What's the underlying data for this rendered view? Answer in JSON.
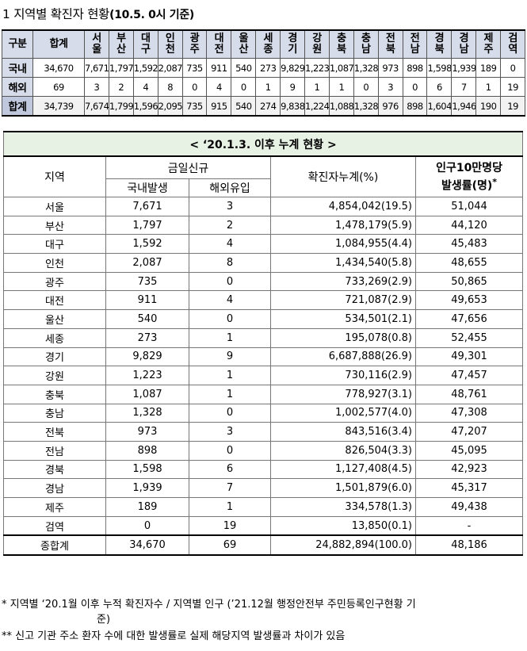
{
  "title": {
    "prefix": "1 지역별 확진자 현황",
    "bold": "(10.5. 0시 기준)"
  },
  "summary": {
    "corner": "구분",
    "total_header": "합계",
    "regions": [
      "서울",
      "부산",
      "대구",
      "인천",
      "광주",
      "대전",
      "울산",
      "세종",
      "경기",
      "강원",
      "충북",
      "충남",
      "전북",
      "전남",
      "경북",
      "경남",
      "제주",
      "검역"
    ],
    "region_lines": [
      [
        "서",
        "울"
      ],
      [
        "부",
        "산"
      ],
      [
        "대",
        "구"
      ],
      [
        "인",
        "천"
      ],
      [
        "광",
        "주"
      ],
      [
        "대",
        "전"
      ],
      [
        "울",
        "산"
      ],
      [
        "세",
        "종"
      ],
      [
        "경",
        "기"
      ],
      [
        "강",
        "원"
      ],
      [
        "충",
        "북"
      ],
      [
        "충",
        "남"
      ],
      [
        "전",
        "북"
      ],
      [
        "전",
        "남"
      ],
      [
        "경",
        "북"
      ],
      [
        "경",
        "남"
      ],
      [
        "제",
        "주"
      ],
      [
        "검",
        "역"
      ]
    ],
    "rows": [
      {
        "label": "국내",
        "total": "34,670",
        "values": [
          "7,671",
          "1,797",
          "1,592",
          "2,087",
          "735",
          "911",
          "540",
          "273",
          "9,829",
          "1,223",
          "1,087",
          "1,328",
          "973",
          "898",
          "1,598",
          "1,939",
          "189",
          "0"
        ]
      },
      {
        "label": "해외",
        "total": "69",
        "values": [
          "3",
          "2",
          "4",
          "8",
          "0",
          "4",
          "0",
          "1",
          "9",
          "1",
          "1",
          "0",
          "3",
          "0",
          "6",
          "7",
          "1",
          "19"
        ]
      },
      {
        "label": "합계",
        "total": "34,739",
        "values": [
          "7,674",
          "1,799",
          "1,596",
          "2,095",
          "735",
          "915",
          "540",
          "274",
          "9,838",
          "1,224",
          "1,088",
          "1,328",
          "976",
          "898",
          "1,604",
          "1,946",
          "190",
          "19"
        ]
      }
    ]
  },
  "cumulative": {
    "caption": "< ‘20.1.3. 이후 누계 현황 >",
    "h_region": "지역",
    "h_today": "금일신규",
    "h_domestic": "국내발생",
    "h_overseas": "해외유입",
    "h_cumulative": "확진자누계(%)",
    "h_rate_line1": "인구10만명당",
    "h_rate_line2": "발생률(명)",
    "h_rate_mark": "*",
    "rows": [
      {
        "region": "서울",
        "domestic": "7,671",
        "overseas": "3",
        "cumulative": "4,854,042(19.5)",
        "rate": "51,044"
      },
      {
        "region": "부산",
        "domestic": "1,797",
        "overseas": "2",
        "cumulative": "1,478,179(5.9)",
        "rate": "44,120"
      },
      {
        "region": "대구",
        "domestic": "1,592",
        "overseas": "4",
        "cumulative": "1,084,955(4.4)",
        "rate": "45,483"
      },
      {
        "region": "인천",
        "domestic": "2,087",
        "overseas": "8",
        "cumulative": "1,434,540(5.8)",
        "rate": "48,655"
      },
      {
        "region": "광주",
        "domestic": "735",
        "overseas": "0",
        "cumulative": "733,269(2.9)",
        "rate": "50,865"
      },
      {
        "region": "대전",
        "domestic": "911",
        "overseas": "4",
        "cumulative": "721,087(2.9)",
        "rate": "49,653"
      },
      {
        "region": "울산",
        "domestic": "540",
        "overseas": "0",
        "cumulative": "534,501(2.1)",
        "rate": "47,656"
      },
      {
        "region": "세종",
        "domestic": "273",
        "overseas": "1",
        "cumulative": "195,078(0.8)",
        "rate": "52,455"
      },
      {
        "region": "경기",
        "domestic": "9,829",
        "overseas": "9",
        "cumulative": "6,687,888(26.9)",
        "rate": "49,301"
      },
      {
        "region": "강원",
        "domestic": "1,223",
        "overseas": "1",
        "cumulative": "730,116(2.9)",
        "rate": "47,457"
      },
      {
        "region": "충북",
        "domestic": "1,087",
        "overseas": "1",
        "cumulative": "778,927(3.1)",
        "rate": "48,761"
      },
      {
        "region": "충남",
        "domestic": "1,328",
        "overseas": "0",
        "cumulative": "1,002,577(4.0)",
        "rate": "47,308"
      },
      {
        "region": "전북",
        "domestic": "973",
        "overseas": "3",
        "cumulative": "843,516(3.4)",
        "rate": "47,207"
      },
      {
        "region": "전남",
        "domestic": "898",
        "overseas": "0",
        "cumulative": "826,504(3.3)",
        "rate": "45,095"
      },
      {
        "region": "경북",
        "domestic": "1,598",
        "overseas": "6",
        "cumulative": "1,127,408(4.5)",
        "rate": "42,923"
      },
      {
        "region": "경남",
        "domestic": "1,939",
        "overseas": "7",
        "cumulative": "1,501,879(6.0)",
        "rate": "45,317"
      },
      {
        "region": "제주",
        "domestic": "189",
        "overseas": "1",
        "cumulative": "334,578(1.3)",
        "rate": "49,438"
      },
      {
        "region": "검역",
        "domestic": "0",
        "overseas": "19",
        "cumulative": "13,850(0.1)",
        "rate": "-"
      },
      {
        "region": "종합계",
        "domestic": "34,670",
        "overseas": "69",
        "cumulative": "24,882,894(100.0)",
        "rate": "48,186"
      }
    ]
  },
  "notes": {
    "note1": "* 지역별 ‘20.1월 이후 누적 확진자수 / 지역별 인구 (’21.12월 행정안전부 주민등록인구현황 기",
    "note1_cont": "준)",
    "note2": "** 신고 기관 주소 환자 수에 대한 발생률로 실제 해당지역 발생률과 차이가 있음"
  }
}
